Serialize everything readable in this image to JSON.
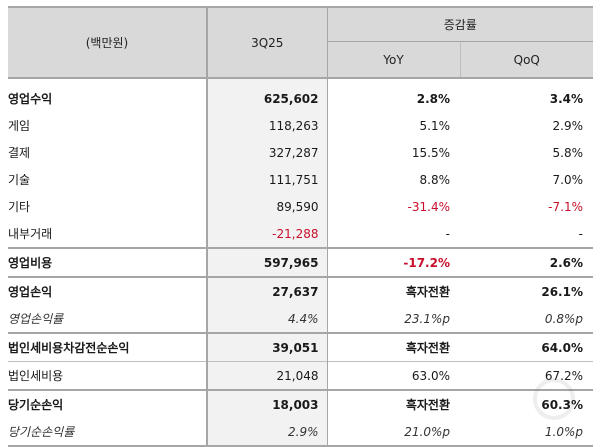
{
  "header": {
    "unit_label": "(백만원)",
    "period_label": "3Q25",
    "change_group_label": "증감률",
    "yoy_label": "YoY",
    "qoq_label": "QoQ"
  },
  "rows": [
    {
      "label": "영업수익",
      "value": "625,602",
      "yoy": "2.8%",
      "qoq": "3.4%",
      "style": "bold"
    },
    {
      "label": "게임",
      "value": "118,263",
      "yoy": "5.1%",
      "qoq": "2.9%",
      "style": "normal"
    },
    {
      "label": "결제",
      "value": "327,287",
      "yoy": "15.5%",
      "qoq": "5.8%",
      "style": "normal"
    },
    {
      "label": "기술",
      "value": "111,751",
      "yoy": "8.8%",
      "qoq": "7.0%",
      "style": "normal"
    },
    {
      "label": "기타",
      "value": "89,590",
      "yoy": "-31.4%",
      "qoq": "-7.1%",
      "style": "normal"
    },
    {
      "label": "내부거래",
      "value": "-21,288",
      "yoy": "-",
      "qoq": "-",
      "style": "normal"
    },
    {
      "label": "영업비용",
      "value": "597,965",
      "yoy": "-17.2%",
      "qoq": "2.6%",
      "style": "bold"
    },
    {
      "label": "영업손익",
      "value": "27,637",
      "yoy": "흑자전환",
      "qoq": "26.1%",
      "style": "bold"
    },
    {
      "label": "영업손익률",
      "value": "4.4%",
      "yoy": "23.1%p",
      "qoq": "0.8%p",
      "style": "italic"
    },
    {
      "label": "법인세비용차감전순손익",
      "value": "39,051",
      "yoy": "흑자전환",
      "qoq": "64.0%",
      "style": "bold"
    },
    {
      "label": "법인세비용",
      "value": "21,048",
      "yoy": "63.0%",
      "qoq": "67.2%",
      "style": "normal"
    },
    {
      "label": "당기순손익",
      "value": "18,003",
      "yoy": "흑자전환",
      "qoq": "60.3%",
      "style": "bold"
    },
    {
      "label": "당기순손익률",
      "value": "2.9%",
      "yoy": "21.0%p",
      "qoq": "1.0%p",
      "style": "italic"
    }
  ],
  "colors": {
    "header_bg": "#d9d9d9",
    "period_column_bg": "#f2f2f2",
    "negative_text": "#c8102e",
    "border": "#a6a6a6"
  }
}
